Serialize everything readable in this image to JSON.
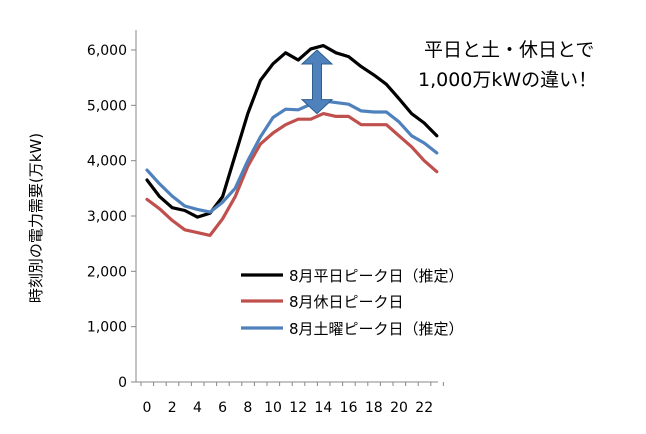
{
  "chart_data": {
    "type": "line",
    "ylabel": "時刻別の電力需要(万kW)",
    "xlabel": "",
    "x": [
      0,
      1,
      2,
      3,
      4,
      5,
      6,
      7,
      8,
      9,
      10,
      11,
      12,
      13,
      14,
      15,
      16,
      17,
      18,
      19,
      20,
      21,
      22,
      23
    ],
    "x_ticks": [
      "0",
      "2",
      "4",
      "6",
      "8",
      "10",
      "12",
      "14",
      "16",
      "18",
      "20",
      "22"
    ],
    "y_ticks": [
      "0",
      "1,000",
      "2,000",
      "3,000",
      "4,000",
      "5,000",
      "6,000"
    ],
    "xlim": [
      0,
      24
    ],
    "ylim": [
      0,
      6500
    ],
    "grid": false,
    "legend_position": "bottom-right",
    "series": [
      {
        "name": "8月平日ピーク日（推定）",
        "color": "#000000",
        "values": [
          3650,
          3350,
          3150,
          3100,
          2980,
          3050,
          3350,
          4100,
          4850,
          5450,
          5750,
          5950,
          5820,
          6020,
          6080,
          5950,
          5880,
          5700,
          5550,
          5380,
          5120,
          4850,
          4680,
          4450
        ]
      },
      {
        "name": "8月休日ピーク日",
        "color": "#c0504d",
        "values": [
          3300,
          3130,
          2920,
          2750,
          2700,
          2650,
          2950,
          3350,
          3900,
          4300,
          4500,
          4650,
          4750,
          4750,
          4850,
          4800,
          4800,
          4650,
          4650,
          4650,
          4450,
          4250,
          4000,
          3800
        ]
      },
      {
        "name": "8月土曜ピーク日（推定）",
        "color": "#4f81bd",
        "values": [
          3830,
          3580,
          3360,
          3180,
          3120,
          3070,
          3250,
          3500,
          4000,
          4430,
          4780,
          4930,
          4920,
          5020,
          5080,
          5050,
          5020,
          4900,
          4880,
          4880,
          4700,
          4450,
          4320,
          4140
        ]
      }
    ],
    "annotation": {
      "line1": "平日と土・休日とで",
      "line2": "1,000万kWの違い！",
      "arrow_color": "#4f81bd",
      "arrow_from": 4850,
      "arrow_to": 6000
    }
  }
}
